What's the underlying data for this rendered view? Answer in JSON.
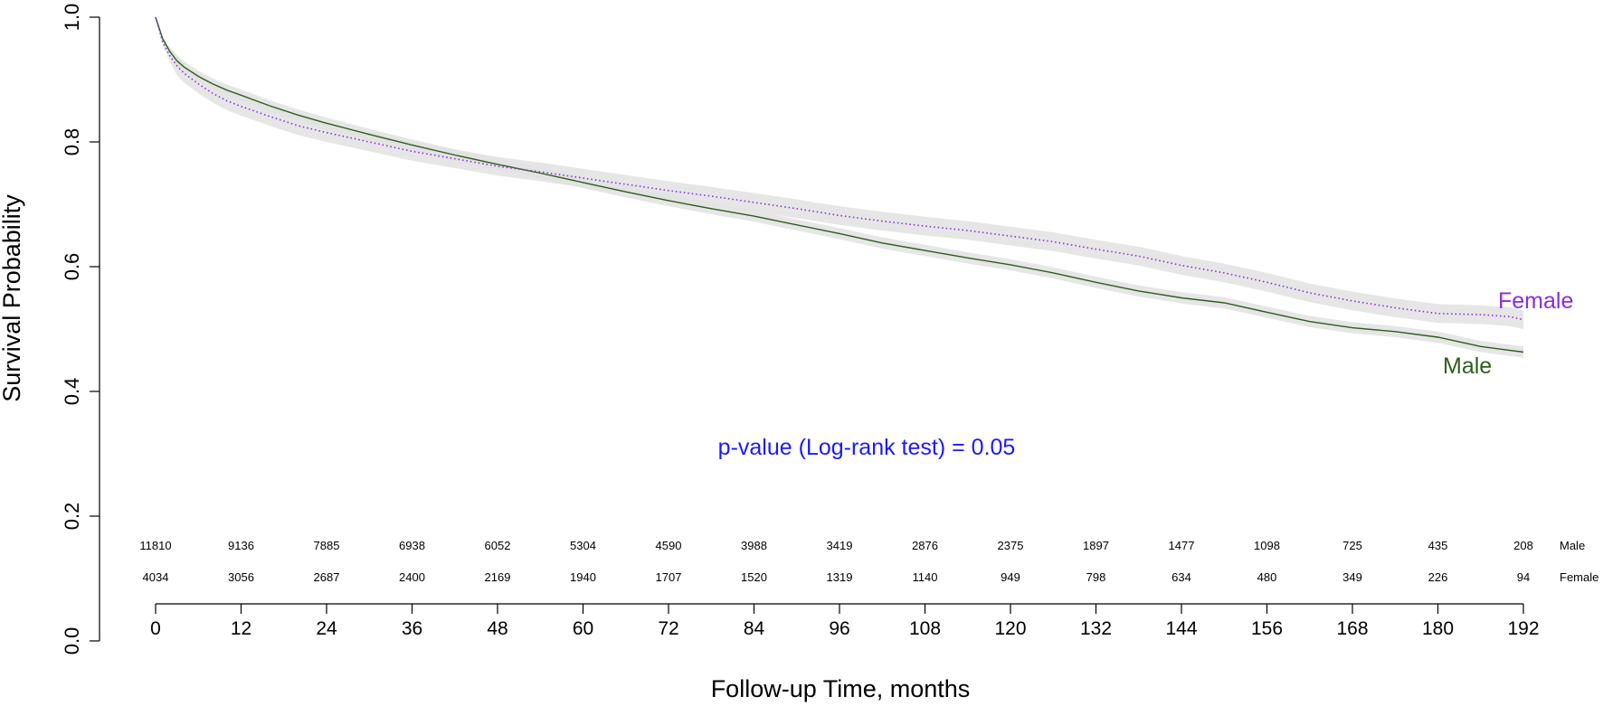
{
  "chart_data": {
    "type": "line",
    "title": "",
    "xlabel": "Follow-up Time, months",
    "ylabel": "Survival Probability",
    "xlim": [
      0,
      192
    ],
    "ylim": [
      0,
      1
    ],
    "x_ticks": [
      0,
      12,
      24,
      36,
      48,
      60,
      72,
      84,
      96,
      108,
      120,
      132,
      144,
      156,
      168,
      180,
      192
    ],
    "y_ticks": [
      0.0,
      0.2,
      0.4,
      0.6,
      0.8,
      1.0
    ],
    "y_tick_labels": [
      "0.0",
      "0.2",
      "0.4",
      "0.6",
      "0.8",
      "1.0"
    ],
    "grid": false,
    "legend": "direct labels at right end of curves",
    "annotation": "p-value (Log-rank test) = 0.05",
    "confidence_band_color": "#e2e2e2",
    "series": [
      {
        "name": "Male",
        "color": "#2d5e1c",
        "style": "solid",
        "x": [
          0,
          1,
          2,
          3,
          4,
          6,
          8,
          10,
          12,
          16,
          20,
          24,
          30,
          36,
          42,
          48,
          54,
          60,
          66,
          72,
          78,
          84,
          90,
          96,
          102,
          108,
          114,
          120,
          126,
          132,
          138,
          144,
          150,
          156,
          162,
          168,
          174,
          180,
          186,
          192
        ],
        "y": [
          1.0,
          0.965,
          0.945,
          0.93,
          0.92,
          0.905,
          0.893,
          0.883,
          0.875,
          0.858,
          0.843,
          0.83,
          0.812,
          0.795,
          0.779,
          0.764,
          0.75,
          0.735,
          0.72,
          0.706,
          0.693,
          0.681,
          0.667,
          0.653,
          0.638,
          0.626,
          0.614,
          0.603,
          0.59,
          0.575,
          0.561,
          0.55,
          0.542,
          0.527,
          0.512,
          0.502,
          0.496,
          0.487,
          0.472,
          0.463
        ],
        "ci_half_width": 0.009,
        "label_text": "Male",
        "at_risk": [
          11810,
          9136,
          7885,
          6938,
          6052,
          5304,
          4590,
          3988,
          3419,
          2876,
          2375,
          1897,
          1477,
          1098,
          725,
          435,
          208
        ]
      },
      {
        "name": "Female",
        "color": "#8a2be2",
        "style": "dotted",
        "x": [
          0,
          1,
          2,
          3,
          4,
          6,
          8,
          10,
          12,
          16,
          20,
          24,
          30,
          36,
          42,
          48,
          54,
          60,
          66,
          72,
          78,
          84,
          90,
          96,
          102,
          108,
          114,
          120,
          126,
          132,
          138,
          144,
          150,
          156,
          162,
          168,
          174,
          180,
          186,
          190,
          192
        ],
        "y": [
          1.0,
          0.96,
          0.938,
          0.922,
          0.91,
          0.893,
          0.878,
          0.866,
          0.857,
          0.841,
          0.826,
          0.815,
          0.8,
          0.785,
          0.773,
          0.761,
          0.752,
          0.742,
          0.732,
          0.722,
          0.713,
          0.703,
          0.693,
          0.682,
          0.673,
          0.665,
          0.658,
          0.649,
          0.64,
          0.628,
          0.617,
          0.602,
          0.59,
          0.575,
          0.558,
          0.545,
          0.534,
          0.525,
          0.523,
          0.52,
          0.515
        ],
        "ci_half_width": 0.015,
        "label_text": "Female",
        "at_risk": [
          4034,
          3056,
          2687,
          2400,
          2169,
          1940,
          1707,
          1520,
          1319,
          1140,
          949,
          798,
          634,
          480,
          349,
          226,
          94
        ]
      }
    ]
  }
}
